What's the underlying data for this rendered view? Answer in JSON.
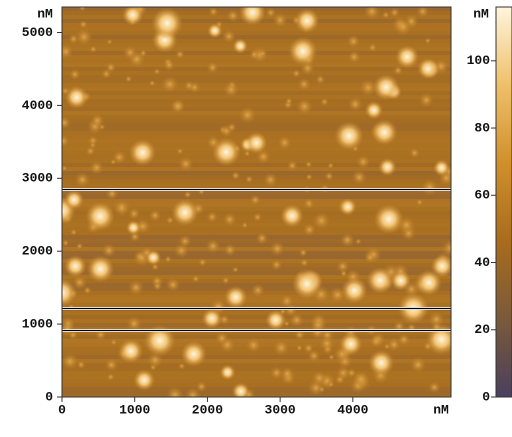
{
  "chart_data": {
    "type": "heatmap",
    "x_unit": "nM",
    "y_unit": "nM",
    "xlim": [
      0,
      5350
    ],
    "ylim": [
      0,
      5350
    ],
    "xticks": [
      0,
      1000,
      2000,
      3000,
      4000
    ],
    "yticks": [
      0,
      1000,
      2000,
      3000,
      4000,
      5000
    ],
    "colorbar": {
      "unit": "nM",
      "lim": [
        0,
        116
      ],
      "ticks": [
        0,
        20,
        40,
        60,
        80,
        100
      ],
      "colormap": [
        "#4a3f5e",
        "#7a5a3a",
        "#a86c1c",
        "#d0902c",
        "#eec06a",
        "#fff4dc"
      ]
    }
  }
}
